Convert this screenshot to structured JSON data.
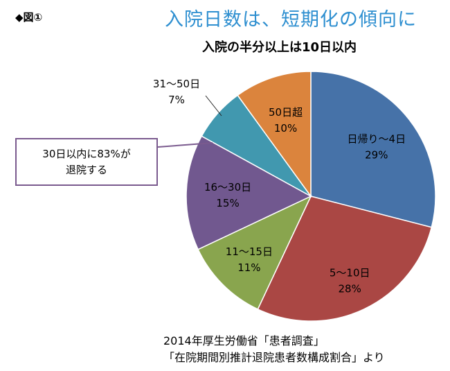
{
  "figure_label": "◆図①",
  "headline": "入院日数は、短期化の傾向に",
  "callout": {
    "line1": "30日以内に83%が",
    "line2": "退院する"
  },
  "source": {
    "line1": "2014年厚生労働省「患者調査」",
    "line2": "「在院期間別推計退院患者数構成割合」より"
  },
  "chart_data": {
    "type": "pie",
    "title": "入院の半分以上は10日以内",
    "start_angle_deg": 0,
    "direction": "clockwise",
    "slices": [
      {
        "name": "日帰り～4日",
        "value": 29,
        "label": "29%",
        "color": "#4672a8"
      },
      {
        "name": "5～10日",
        "value": 28,
        "label": "28%",
        "color": "#aa4744"
      },
      {
        "name": "11～15日",
        "value": 11,
        "label": "11%",
        "color": "#89a54e"
      },
      {
        "name": "16～30日",
        "value": 15,
        "label": "15%",
        "color": "#71588f"
      },
      {
        "name": "31～50日",
        "value": 7,
        "label": "7%",
        "color": "#4198af"
      },
      {
        "name": "50日超",
        "value": 10,
        "label": "10%",
        "color": "#db843d"
      }
    ]
  }
}
